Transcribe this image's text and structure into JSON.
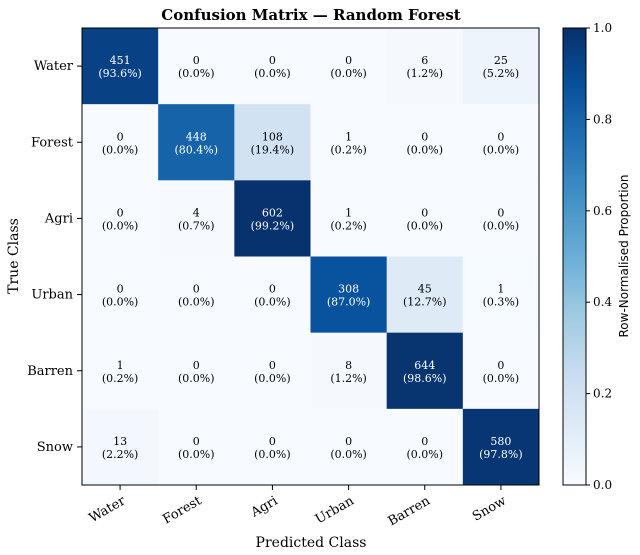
{
  "chart_data": {
    "type": "heatmap",
    "title": "Confusion Matrix — Random Forest",
    "xlabel": "Predicted Class",
    "ylabel": "True Class",
    "x_categories": [
      "Water",
      "Forest",
      "Agri",
      "Urban",
      "Barren",
      "Snow"
    ],
    "y_categories": [
      "Water",
      "Forest",
      "Agri",
      "Urban",
      "Barren",
      "Snow"
    ],
    "counts": [
      [
        451,
        0,
        0,
        0,
        6,
        25
      ],
      [
        0,
        448,
        108,
        1,
        0,
        0
      ],
      [
        0,
        4,
        602,
        1,
        0,
        0
      ],
      [
        0,
        0,
        0,
        308,
        45,
        1
      ],
      [
        1,
        0,
        0,
        8,
        644,
        0
      ],
      [
        13,
        0,
        0,
        0,
        0,
        580
      ]
    ],
    "percent_labels": [
      [
        "(93.6%)",
        "(0.0%)",
        "(0.0%)",
        "(0.0%)",
        "(1.2%)",
        "(5.2%)"
      ],
      [
        "(0.0%)",
        "(80.4%)",
        "(19.4%)",
        "(0.2%)",
        "(0.0%)",
        "(0.0%)"
      ],
      [
        "(0.0%)",
        "(0.7%)",
        "(99.2%)",
        "(0.2%)",
        "(0.0%)",
        "(0.0%)"
      ],
      [
        "(0.0%)",
        "(0.0%)",
        "(0.0%)",
        "(87.0%)",
        "(12.7%)",
        "(0.3%)"
      ],
      [
        "(0.2%)",
        "(0.0%)",
        "(0.0%)",
        "(1.2%)",
        "(98.6%)",
        "(0.0%)"
      ],
      [
        "(2.2%)",
        "(0.0%)",
        "(0.0%)",
        "(0.0%)",
        "(0.0%)",
        "(97.8%)"
      ]
    ],
    "proportions": [
      [
        0.936,
        0.0,
        0.0,
        0.0,
        0.012,
        0.052
      ],
      [
        0.0,
        0.804,
        0.194,
        0.002,
        0.0,
        0.0
      ],
      [
        0.0,
        0.007,
        0.992,
        0.002,
        0.0,
        0.0
      ],
      [
        0.0,
        0.0,
        0.0,
        0.87,
        0.127,
        0.003
      ],
      [
        0.002,
        0.0,
        0.0,
        0.012,
        0.986,
        0.0
      ],
      [
        0.022,
        0.0,
        0.0,
        0.0,
        0.0,
        0.978
      ]
    ],
    "colorbar": {
      "label": "Row-Normalised Proportion",
      "range": [
        0.0,
        1.0
      ],
      "ticks": [
        "0.0",
        "0.2",
        "0.4",
        "0.6",
        "0.8",
        "1.0"
      ],
      "colormap": "Blues"
    }
  }
}
